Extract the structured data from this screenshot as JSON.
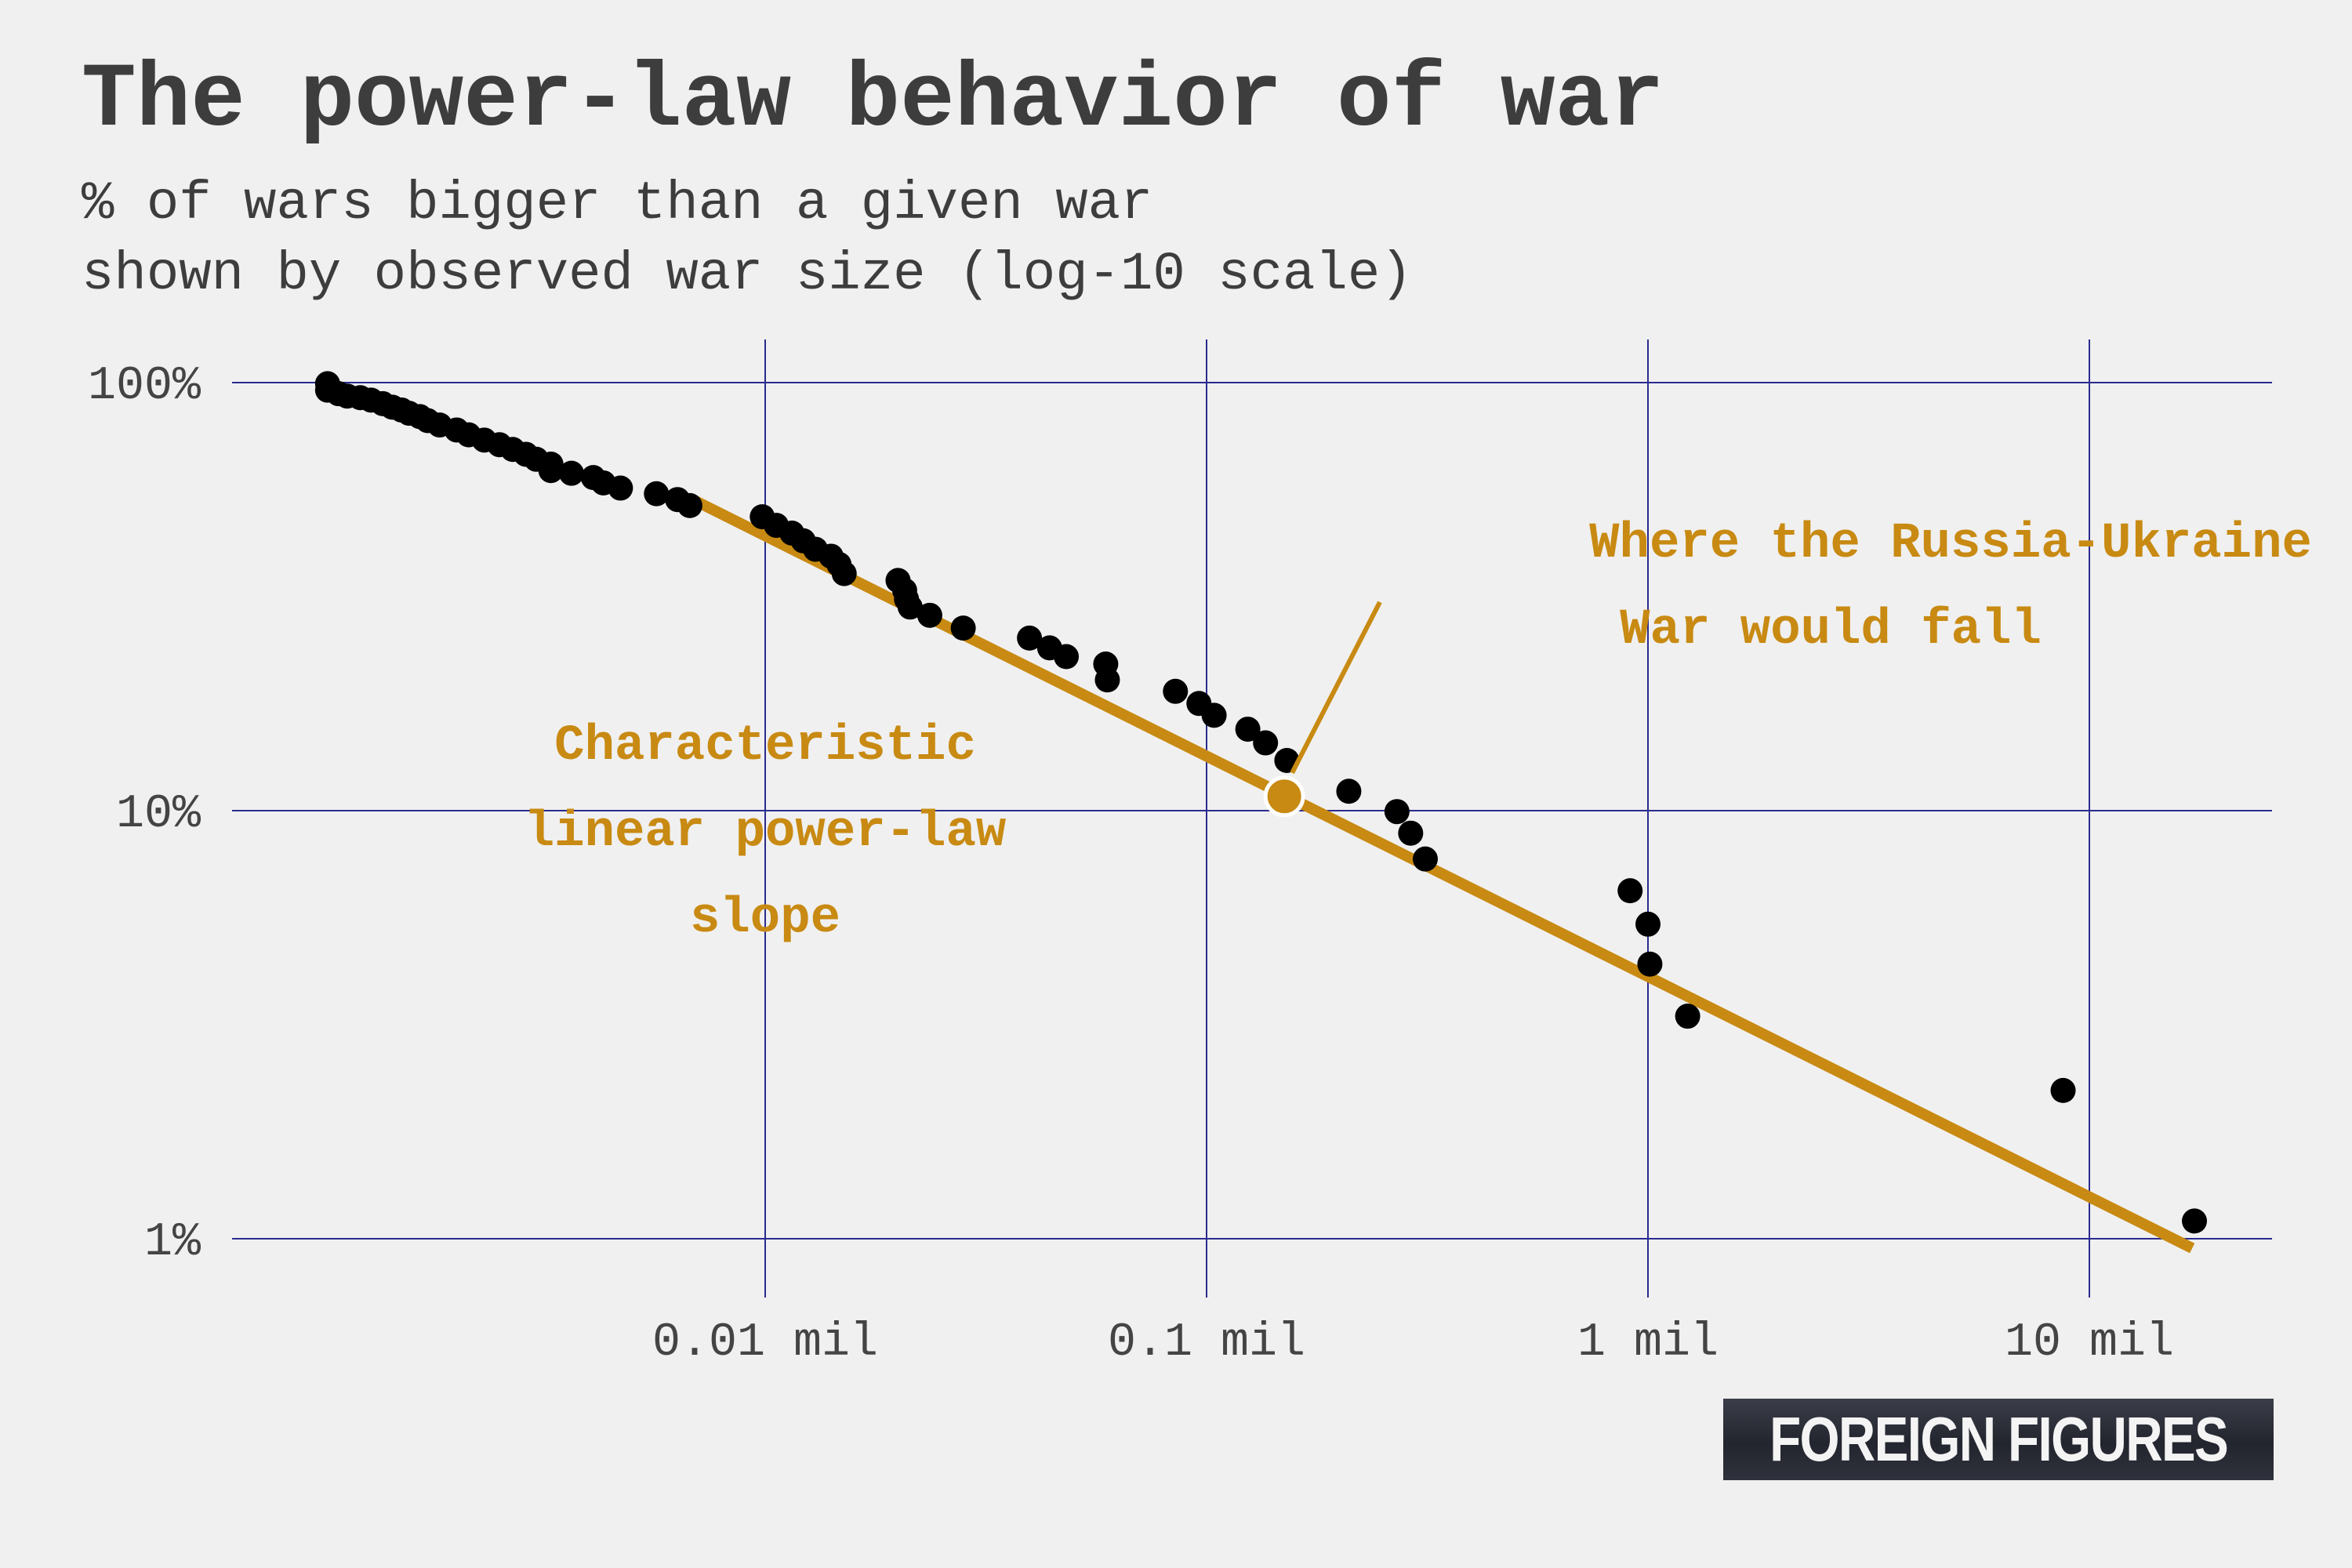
{
  "title": "The power-law behavior of war",
  "subtitle_line1": "% of wars bigger than a given war",
  "subtitle_line2": "shown by observed war size (log-10 scale)",
  "brand": "FOREIGN FIGURES",
  "colors": {
    "background": "#f0f0f0",
    "grid": "#2b2b8f",
    "points": "#000000",
    "accent": "#c88a12",
    "text": "#3d3d3d"
  },
  "chart_data": {
    "type": "scatter",
    "x_scale": "log10",
    "y_scale": "log10",
    "x_unit": "million battle deaths",
    "y_unit": "percent",
    "xlim": [
      0.00083,
      25
    ],
    "ylim": [
      0.6,
      100
    ],
    "grid": true,
    "x_ticks": [
      {
        "value": 0.01,
        "label": "0.01 mil"
      },
      {
        "value": 0.1,
        "label": "0.1 mil"
      },
      {
        "value": 1,
        "label": "1 mil"
      },
      {
        "value": 10,
        "label": "10 mil"
      }
    ],
    "y_ticks": [
      {
        "value": 100,
        "label": "100%"
      },
      {
        "value": 10,
        "label": "10%"
      },
      {
        "value": 1,
        "label": "1%"
      }
    ],
    "points": [
      [
        0.00102,
        99.4
      ],
      [
        0.00102,
        96.0
      ],
      [
        0.00108,
        94.2
      ],
      [
        0.00113,
        93.0
      ],
      [
        0.00121,
        92.2
      ],
      [
        0.00128,
        91.0
      ],
      [
        0.00136,
        89.3
      ],
      [
        0.00143,
        87.6
      ],
      [
        0.0015,
        86.3
      ],
      [
        0.00156,
        84.8
      ],
      [
        0.00165,
        83.3
      ],
      [
        0.00172,
        81.5
      ],
      [
        0.00183,
        79.6
      ],
      [
        0.002,
        77.5
      ],
      [
        0.00213,
        75.5
      ],
      [
        0.00231,
        73.4
      ],
      [
        0.0025,
        71.6
      ],
      [
        0.00268,
        69.8
      ],
      [
        0.00287,
        68.0
      ],
      [
        0.00303,
        66.2
      ],
      [
        0.00327,
        64.5
      ],
      [
        0.00327,
        62.3
      ],
      [
        0.00364,
        61.4
      ],
      [
        0.00408,
        60.0
      ],
      [
        0.0043,
        58.3
      ],
      [
        0.0047,
        56.7
      ],
      [
        0.00567,
        55.0
      ],
      [
        0.00633,
        53.3
      ],
      [
        0.00675,
        51.6
      ],
      [
        0.00985,
        48.6
      ],
      [
        0.0106,
        46.4
      ],
      [
        0.0115,
        44.5
      ],
      [
        0.0122,
        42.7
      ],
      [
        0.013,
        40.8
      ],
      [
        0.0141,
        39.3
      ],
      [
        0.0147,
        37.6
      ],
      [
        0.0151,
        35.8
      ],
      [
        0.02,
        34.5
      ],
      [
        0.0207,
        32.7
      ],
      [
        0.0209,
        31.2
      ],
      [
        0.0213,
        29.9
      ],
      [
        0.0236,
        28.6
      ],
      [
        0.0281,
        26.7
      ],
      [
        0.0397,
        25.3
      ],
      [
        0.0441,
        24.0
      ],
      [
        0.0481,
        22.9
      ],
      [
        0.0591,
        22.0
      ],
      [
        0.0596,
        20.2
      ],
      [
        0.085,
        19.0
      ],
      [
        0.0961,
        17.8
      ],
      [
        0.104,
        16.7
      ],
      [
        0.124,
        15.5
      ],
      [
        0.136,
        14.4
      ],
      [
        0.152,
        13.1
      ],
      [
        0.21,
        11.1
      ],
      [
        0.27,
        9.95
      ],
      [
        0.29,
        8.86
      ],
      [
        0.313,
        7.71
      ],
      [
        0.911,
        6.5
      ],
      [
        1.0,
        5.43
      ],
      [
        1.01,
        4.38
      ],
      [
        1.23,
        3.31
      ],
      [
        8.72,
        2.22
      ],
      [
        17.3,
        1.1
      ]
    ],
    "fit_line": {
      "label": "Characteristic linear power-law slope",
      "start": {
        "x": 0.0068,
        "y": 53.5
      },
      "end": {
        "x": 17.1,
        "y": 0.95
      }
    },
    "highlight": {
      "label_line1": "Where the Russia-Ukraine",
      "label_line2": "War would fall",
      "x": 0.15,
      "y": 10.8
    },
    "annotations": {
      "slope_line1": "Characteristic",
      "slope_line2": "linear power-law",
      "slope_line3": "slope"
    }
  }
}
